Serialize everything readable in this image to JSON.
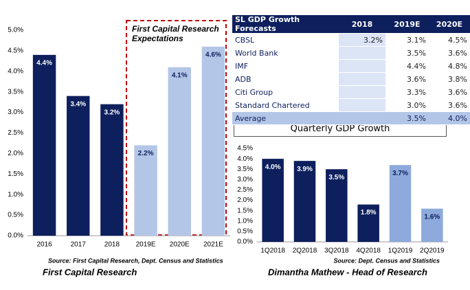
{
  "chart_data": [
    {
      "type": "bar",
      "categories": [
        "2016",
        "2017",
        "2018",
        "2019E",
        "2020E",
        "2021E"
      ],
      "values": [
        4.4,
        3.4,
        3.2,
        2.2,
        4.1,
        4.6
      ],
      "value_labels": [
        "4.4%",
        "3.4%",
        "3.2%",
        "2.2%",
        "4.1%",
        "4.6%"
      ],
      "colors": [
        "#0d1f5c",
        "#0d1f5c",
        "#0d1f5c",
        "#b4c6e7",
        "#b4c6e7",
        "#b4c6e7"
      ],
      "ylim": [
        0,
        5
      ],
      "yticks": [
        {
          "value": 0,
          "label": "0.0%"
        },
        {
          "value": 0.5,
          "label": "0.5%"
        },
        {
          "value": 1,
          "label": "1.0%"
        },
        {
          "value": 1.5,
          "label": "1.5%"
        },
        {
          "value": 2,
          "label": "2.0%"
        },
        {
          "value": 2.5,
          "label": "2.5%"
        },
        {
          "value": 3,
          "label": "3.0%"
        },
        {
          "value": 3.5,
          "label": "3.5%"
        },
        {
          "value": 4,
          "label": "4.0%"
        },
        {
          "value": 4.5,
          "label": "4.5%"
        },
        {
          "value": 5,
          "label": "5.0%"
        }
      ],
      "annotation": "First Capital Research Expectations",
      "source": "Source: First Capital Research, Dept. Census and Statistics",
      "credit": "First Capital Research"
    },
    {
      "type": "bar",
      "title": "Quarterly GDP Growth",
      "categories": [
        "1Q2018",
        "2Q2018",
        "3Q2018",
        "4Q2018",
        "1Q2019",
        "2Q2019"
      ],
      "values": [
        4.0,
        3.9,
        3.5,
        1.8,
        3.7,
        1.6
      ],
      "value_labels": [
        "4.0%",
        "3.9%",
        "3.5%",
        "1.8%",
        "3.7%",
        "1.6%"
      ],
      "colors": [
        "#0d1f5c",
        "#0d1f5c",
        "#0d1f5c",
        "#0d1f5c",
        "#8ea9db",
        "#8ea9db"
      ],
      "ylim": [
        0,
        4.5
      ],
      "yticks": [
        {
          "value": 0,
          "label": "0.0%"
        },
        {
          "value": 0.5,
          "label": "0.5%"
        },
        {
          "value": 1,
          "label": "1.0%"
        },
        {
          "value": 1.5,
          "label": "1.5%"
        },
        {
          "value": 2,
          "label": "2.0%"
        },
        {
          "value": 2.5,
          "label": "2.5%"
        },
        {
          "value": 3,
          "label": "3.0%"
        },
        {
          "value": 3.5,
          "label": "3.5%"
        },
        {
          "value": 4,
          "label": "4.0%"
        },
        {
          "value": 4.5,
          "label": "4.5%"
        }
      ],
      "source": "Source: Dept. Census and Statistics",
      "credit": "Dimantha Mathew - Head of Research"
    }
  ],
  "table": {
    "header": [
      "SL GDP Growth Forecasts",
      "2018",
      "2019E",
      "2020E"
    ],
    "rows": [
      [
        "CBSL",
        "3.2%",
        "3.1%",
        "4.5%"
      ],
      [
        "World Bank",
        null,
        "3.5%",
        "3.6%"
      ],
      [
        "IMF",
        null,
        "4.4%",
        "4.8%"
      ],
      [
        "ADB",
        null,
        "3.6%",
        "3.8%"
      ],
      [
        "Citi Group",
        null,
        "3.3%",
        "3.6%"
      ],
      [
        "Standard Chartered",
        null,
        "3.0%",
        "3.6%"
      ],
      [
        "Average",
        null,
        "3.5%",
        "4.0%"
      ]
    ]
  }
}
